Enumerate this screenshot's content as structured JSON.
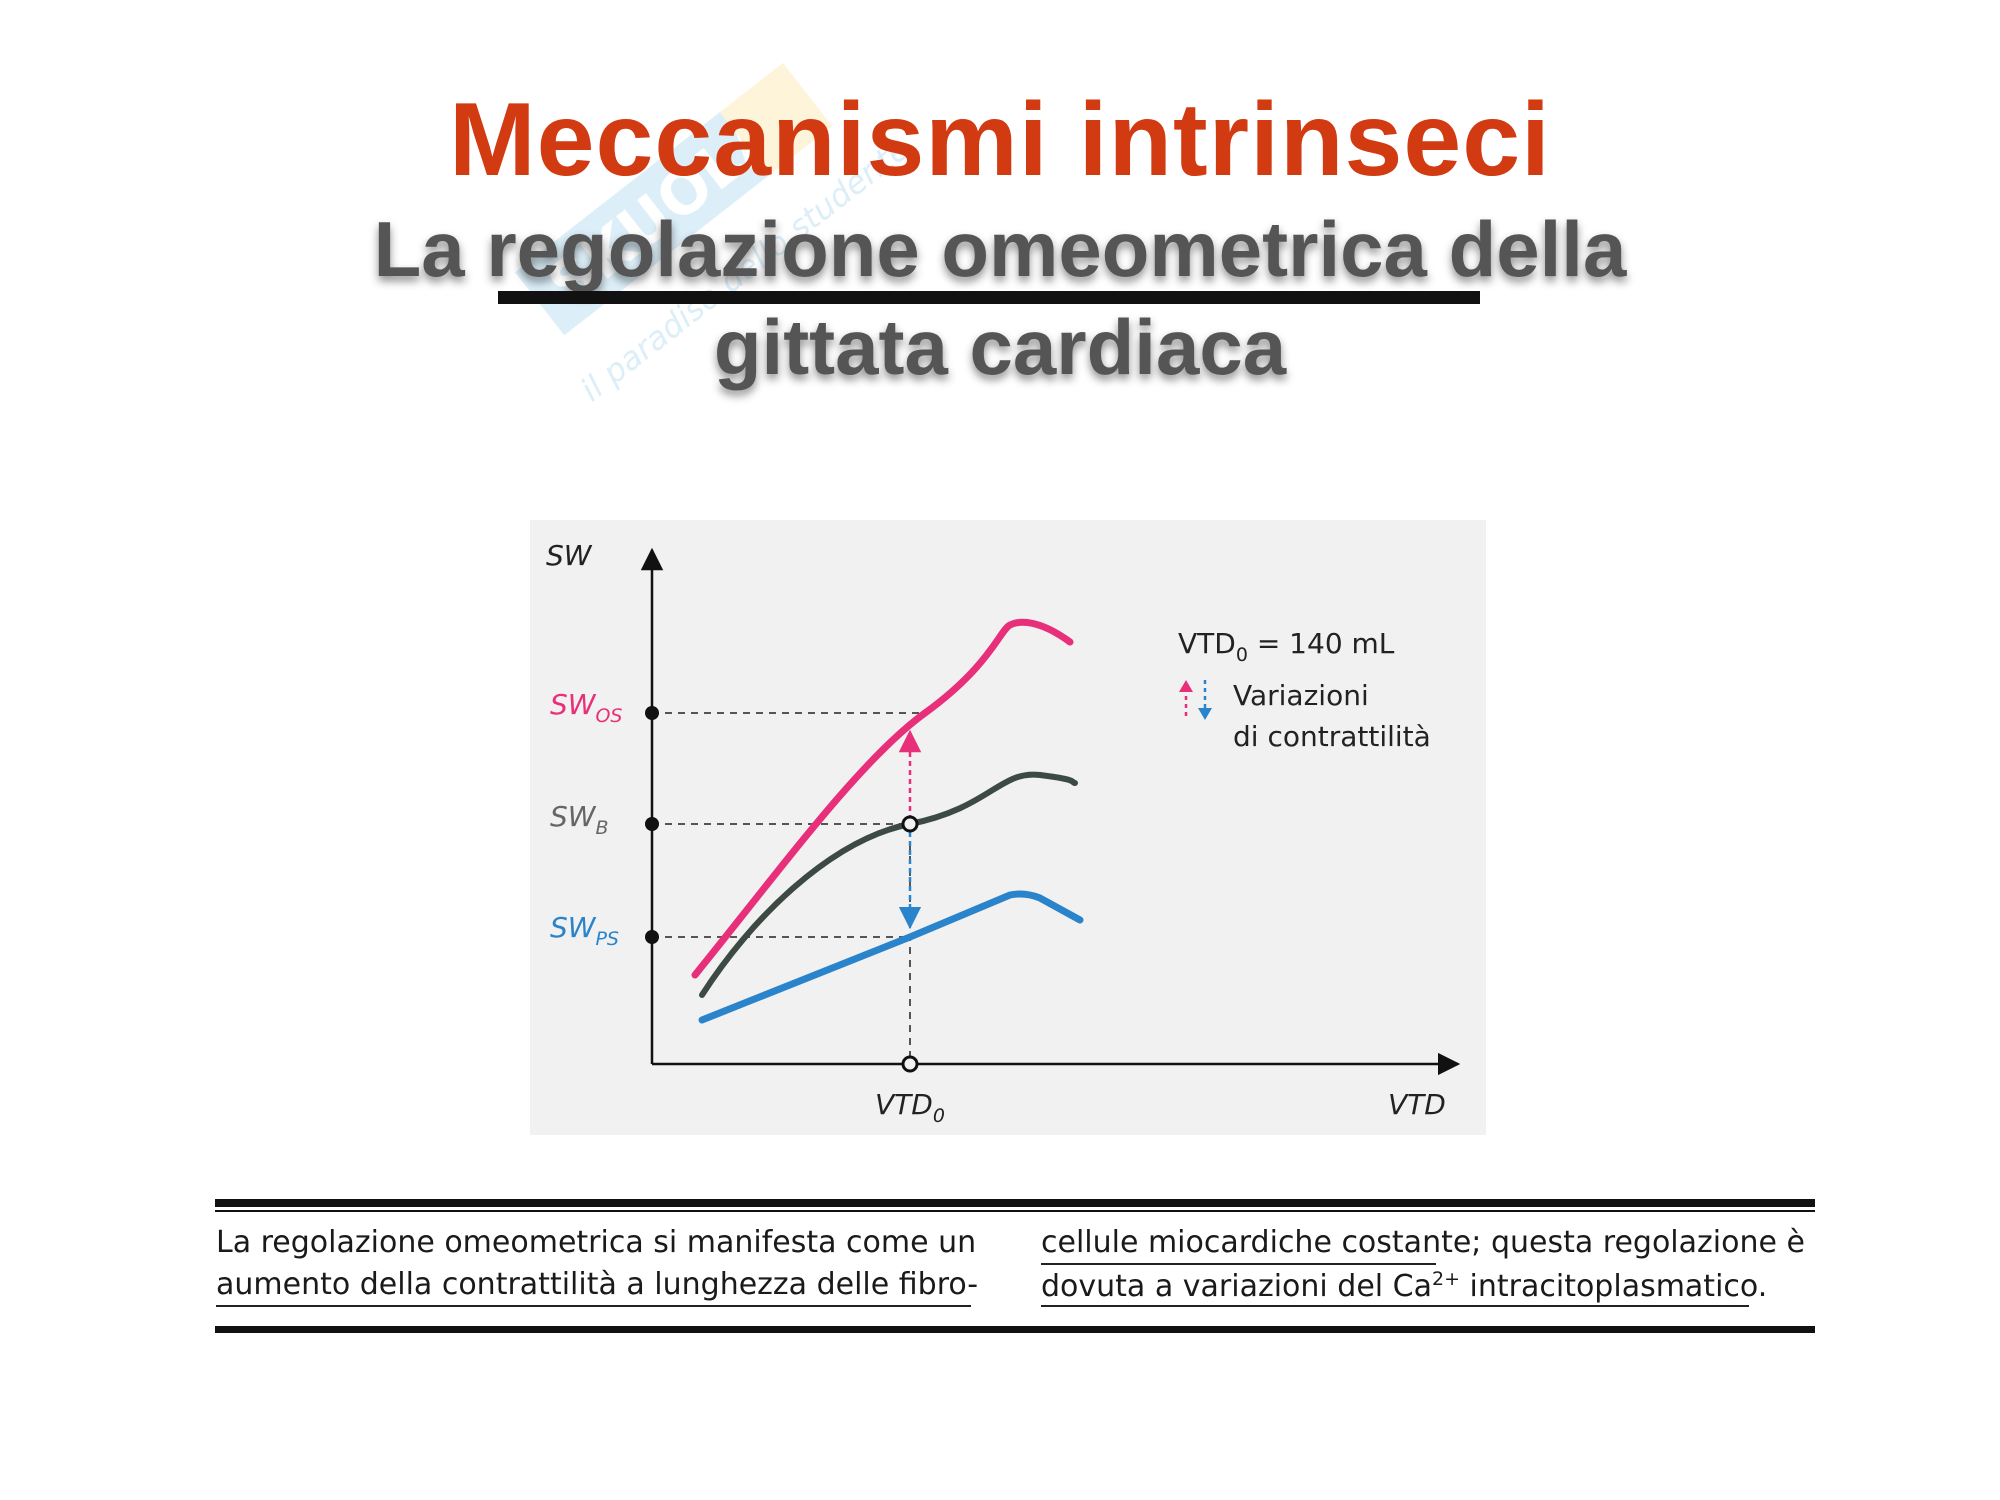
{
  "slide": {
    "title": "Meccanismi intrinseci",
    "subtitle_line1": "La regolazione omeometrica della",
    "subtitle_line2": "gittata cardiaca",
    "watermark_text": "SKUOLA.net il paradiso dello studente"
  },
  "colors": {
    "title": "#d23a12",
    "subtitle": "#555555",
    "curve_os": "#e8307a",
    "curve_b": "#3d4a44",
    "curve_ps": "#2a84cc",
    "figure_background": "#f1f1f1"
  },
  "chart_data": {
    "type": "line",
    "title": "",
    "xlabel": "VTD",
    "ylabel": "SW",
    "x_tick_labels": [
      "VTD0"
    ],
    "y_tick_labels": [
      "SWOS",
      "SWB",
      "SWPS"
    ],
    "legend": {
      "placement": "top-right",
      "text": "VTD0 = 140 mL",
      "symbol_label_line1": "Variazioni",
      "symbol_label_line2": "di contrattilità"
    },
    "series": [
      {
        "name": "SWOS",
        "color": "#e8307a",
        "values": [
          [
            0.05,
            0.15
          ],
          [
            0.3,
            0.65
          ],
          [
            0.46,
            0.86
          ],
          [
            0.5,
            0.87
          ],
          [
            0.55,
            0.83
          ]
        ]
      },
      {
        "name": "SWB",
        "color": "#3d4a44",
        "values": [
          [
            0.06,
            0.12
          ],
          [
            0.2,
            0.33
          ],
          [
            0.3,
            0.46
          ],
          [
            0.42,
            0.58
          ],
          [
            0.52,
            0.57
          ]
        ]
      },
      {
        "name": "SWPS",
        "color": "#2a84cc",
        "values": [
          [
            0.06,
            0.08
          ],
          [
            0.2,
            0.18
          ],
          [
            0.3,
            0.25
          ],
          [
            0.43,
            0.33
          ],
          [
            0.54,
            0.27
          ]
        ]
      }
    ],
    "grid": false
  },
  "caption": {
    "left_line1": "La regolazione omeometrica si manifesta come un",
    "left_line2": "aumento della contrattilità a lunghezza delle fibro-",
    "right_line1": "cellule miocardiche costante; questa regolazione è",
    "right_line2_a": "dovuta a variazioni del Ca",
    "right_line2_sup": "2+",
    "right_line2_b": " intracitoplasmatico."
  }
}
